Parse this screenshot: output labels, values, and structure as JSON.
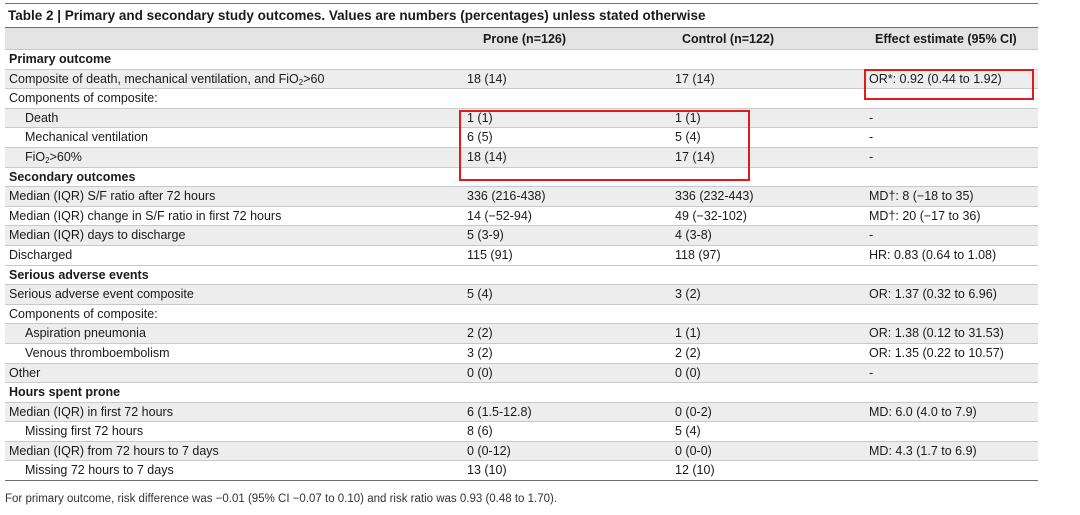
{
  "table": {
    "title": "Table 2 | Primary and secondary study outcomes. Values are numbers (percentages) unless stated otherwise",
    "headers": [
      "",
      "Prone (n=126)",
      "Control (n=122)",
      "Effect estimate (95% CI)"
    ],
    "sections": {
      "primary": "Primary outcome",
      "secondary": "Secondary outcomes",
      "adverse": "Serious adverse events",
      "hours": "Hours spent prone"
    },
    "rows": {
      "composite": {
        "label_pre": "Composite of death, mechanical ventilation, and FiO",
        "label_sub": "2",
        "label_post": ">60",
        "prone": "18 (14)",
        "control": "17 (14)",
        "effect": "OR*: 0.92 (0.44 to 1.92)"
      },
      "components1": {
        "label": "Components of composite:",
        "prone": "",
        "control": "",
        "effect": ""
      },
      "death": {
        "label": "Death",
        "prone": "1 (1)",
        "control": "1 (1)",
        "effect": "-"
      },
      "mechvent": {
        "label": "Mechanical ventilation",
        "prone": "6 (5)",
        "control": "5 (4)",
        "effect": "-"
      },
      "fio2": {
        "label_pre": "FiO",
        "label_sub": "2",
        "label_post": ">60%",
        "prone": "18 (14)",
        "control": "17 (14)",
        "effect": "-"
      },
      "sf72": {
        "label": "Median (IQR) S/F ratio after 72 hours",
        "prone": "336 (216-438)",
        "control": "336 (232-443)",
        "effect": "MD†: 8 (−18 to 35)"
      },
      "sfchange": {
        "label": "Median (IQR) change in S/F ratio in first 72 hours",
        "prone": "14 (−52-94)",
        "control": "49 (−32-102)",
        "effect": "MD†: 20 (−17 to 36)"
      },
      "discharge_days": {
        "label": "Median (IQR) days to discharge",
        "prone": "5 (3-9)",
        "control": "4 (3-8)",
        "effect": "-"
      },
      "discharged": {
        "label": "Discharged",
        "prone": "115 (91)",
        "control": "118 (97)",
        "effect": "HR: 0.83 (0.64 to 1.08)"
      },
      "sae_composite": {
        "label": "Serious adverse event composite",
        "prone": "5 (4)",
        "control": "3 (2)",
        "effect": "OR: 1.37 (0.32 to 6.96)"
      },
      "components2": {
        "label": "Components of composite:",
        "prone": "",
        "control": "",
        "effect": ""
      },
      "aspiration": {
        "label": "Aspiration pneumonia",
        "prone": "2 (2)",
        "control": "1 (1)",
        "effect": "OR: 1.38 (0.12 to 31.53)"
      },
      "vte": {
        "label": "Venous thromboembolism",
        "prone": "3 (2)",
        "control": "2 (2)",
        "effect": "OR: 1.35 (0.22 to 10.57)"
      },
      "other": {
        "label": "Other",
        "prone": "0 (0)",
        "control": "0 (0)",
        "effect": "-"
      },
      "hours_first72": {
        "label": "Median (IQR) in first 72 hours",
        "prone": "6 (1.5-12.8)",
        "control": "0 (0-2)",
        "effect": "MD: 6.0 (4.0 to 7.9)"
      },
      "missing_first72": {
        "label": "Missing first 72 hours",
        "prone": "8 (6)",
        "control": "5 (4)",
        "effect": ""
      },
      "hours_72to7": {
        "label": "Median (IQR) from 72 hours to 7 days",
        "prone": "0 (0-12)",
        "control": "0 (0-0)",
        "effect": "MD: 4.3 (1.7 to 6.9)"
      },
      "missing_72to7": {
        "label": "Missing 72 hours to 7 days",
        "prone": "13 (10)",
        "control": "12 (10)",
        "effect": ""
      }
    },
    "footnote": "For primary outcome, risk difference was −0.01 (95% CI −0.07 to 0.10) and risk ratio was 0.93 (0.48 to 1.70).",
    "highlight_color": "#e01b1b"
  }
}
